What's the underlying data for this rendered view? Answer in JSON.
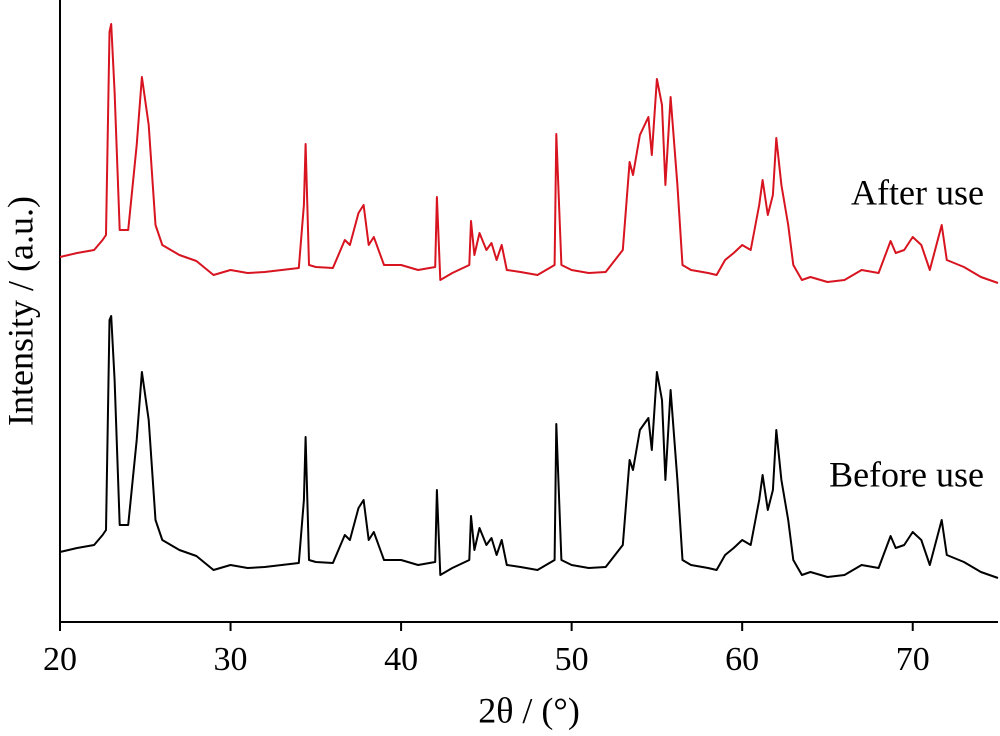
{
  "chart_data": {
    "type": "line",
    "xlabel": "2θ / (°)",
    "ylabel": "Intensity / (a.u.)",
    "annotations": [
      "After use",
      "Before use"
    ],
    "xlim": [
      20,
      75
    ],
    "xticks": [
      20,
      30,
      40,
      50,
      60,
      70
    ],
    "ylim": [
      0,
      622
    ],
    "x": [
      20,
      21,
      22,
      22.5,
      22.7,
      22.9,
      23.0,
      23.2,
      23.5,
      24,
      24.5,
      24.8,
      25.2,
      25.6,
      26,
      27,
      28,
      29,
      30,
      31,
      32,
      33,
      34,
      34.3,
      34.4,
      34.6,
      35,
      36,
      36.7,
      37,
      37.5,
      37.8,
      38.1,
      38.4,
      39,
      40,
      41,
      42,
      42.1,
      42.3,
      43,
      44,
      44.1,
      44.3,
      44.6,
      45,
      45.3,
      45.6,
      45.9,
      46.2,
      47,
      48,
      49,
      49.1,
      49.4,
      50,
      51,
      52,
      53,
      53.4,
      53.6,
      54,
      54.5,
      54.7,
      55,
      55.3,
      55.5,
      55.8,
      56.2,
      56.5,
      57,
      58,
      58.5,
      59,
      59.5,
      60,
      60.5,
      61,
      61.2,
      61.5,
      61.8,
      62,
      62.3,
      62.7,
      63,
      63.5,
      64,
      65,
      66,
      67,
      68,
      68.7,
      69,
      69.5,
      70,
      70.5,
      71,
      71.7,
      72,
      73,
      74,
      75
    ],
    "series": [
      {
        "name": "After use",
        "color": "#d7141f",
        "values": [
          365,
          369,
          372,
          382,
          387,
          590,
          598,
          530,
          392,
          392,
          477,
          545,
          497,
          397,
          377,
          367,
          361,
          347,
          352,
          349,
          350,
          352,
          354,
          417,
          478,
          357,
          355,
          354,
          382,
          377,
          409,
          417,
          377,
          385,
          357,
          357,
          352,
          355,
          425,
          342,
          349,
          357,
          401,
          367,
          389,
          372,
          379,
          362,
          377,
          352,
          350,
          347,
          357,
          488,
          357,
          352,
          349,
          350,
          372,
          460,
          447,
          487,
          505,
          467,
          543,
          517,
          437,
          525,
          437,
          357,
          352,
          349,
          347,
          362,
          369,
          377,
          372,
          417,
          442,
          407,
          427,
          484,
          437,
          397,
          357,
          342,
          345,
          340,
          342,
          352,
          349,
          381,
          369,
          372,
          385,
          377,
          352,
          397,
          362,
          355,
          345,
          339
        ]
      },
      {
        "name": "Before use",
        "color": "#000000",
        "values": [
          70,
          74,
          77,
          87,
          92,
          302,
          306,
          242,
          97,
          97,
          182,
          250,
          202,
          102,
          82,
          72,
          66,
          52,
          57,
          54,
          55,
          57,
          59,
          122,
          185,
          62,
          60,
          59,
          87,
          82,
          114,
          122,
          82,
          90,
          62,
          62,
          57,
          60,
          132,
          47,
          54,
          62,
          106,
          72,
          94,
          77,
          84,
          67,
          82,
          57,
          55,
          52,
          62,
          198,
          62,
          57,
          54,
          55,
          77,
          162,
          152,
          192,
          204,
          172,
          250,
          222,
          142,
          232,
          142,
          62,
          57,
          54,
          52,
          67,
          74,
          82,
          77,
          122,
          147,
          112,
          132,
          192,
          142,
          102,
          62,
          47,
          50,
          45,
          47,
          57,
          54,
          86,
          74,
          77,
          90,
          82,
          57,
          102,
          67,
          60,
          50,
          44
        ]
      }
    ]
  }
}
